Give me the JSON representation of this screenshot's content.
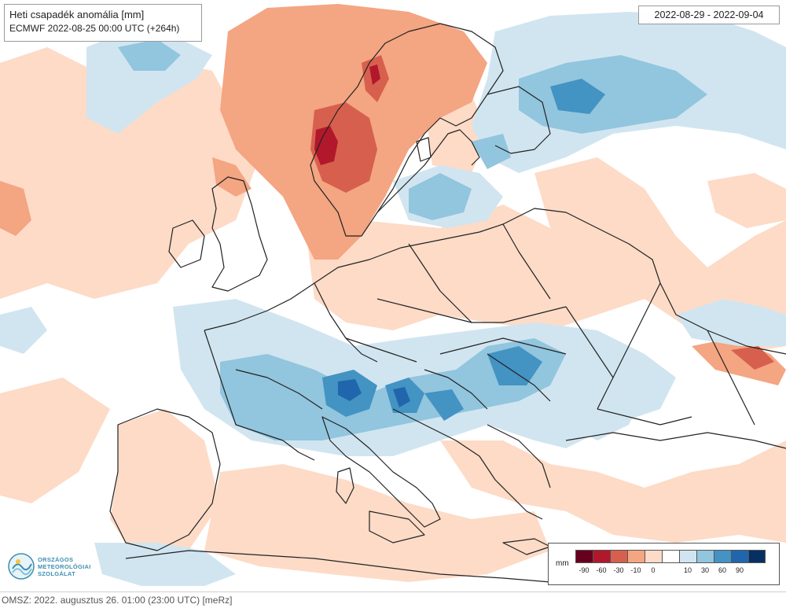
{
  "header": {
    "title": "Heti csapadék anomália [mm]",
    "model_run": "ECMWF 2022-08-25 00:00 UTC (+264h)",
    "date_range": "2022-08-29 - 2022-09-04"
  },
  "legend": {
    "unit": "mm",
    "swatches": [
      {
        "color": "#67001f",
        "label": "-90"
      },
      {
        "color": "#b2182b",
        "label": "-60"
      },
      {
        "color": "#d6604d",
        "label": "-30"
      },
      {
        "color": "#f4a582",
        "label": "-10"
      },
      {
        "color": "#fddbc7",
        "label": "0"
      },
      {
        "color": "#ffffff",
        "label": ""
      },
      {
        "color": "#d1e5f0",
        "label": "10"
      },
      {
        "color": "#92c5de",
        "label": "30"
      },
      {
        "color": "#4393c3",
        "label": "60"
      },
      {
        "color": "#2166ac",
        "label": "90"
      },
      {
        "color": "#053061",
        "label": ""
      }
    ]
  },
  "logo": {
    "line1": "ORSZÁGOS",
    "line2": "METEOROLÓGIAI",
    "line3": "SZOLGÁLAT"
  },
  "footer": {
    "text": "OMSZ: 2022. augusztus 26. 01:00 (23:00 UTC)  [meRz]"
  },
  "colors": {
    "dry_light": "#fddbc7",
    "dry_medium": "#f4a582",
    "dry_strong": "#d6604d",
    "dry_extreme": "#b2182b",
    "wet_light": "#d1e5f0",
    "wet_medium": "#92c5de",
    "wet_strong": "#4393c3",
    "wet_extreme": "#2166ac",
    "border_line": "#222222",
    "neutral": "#ffffff"
  }
}
